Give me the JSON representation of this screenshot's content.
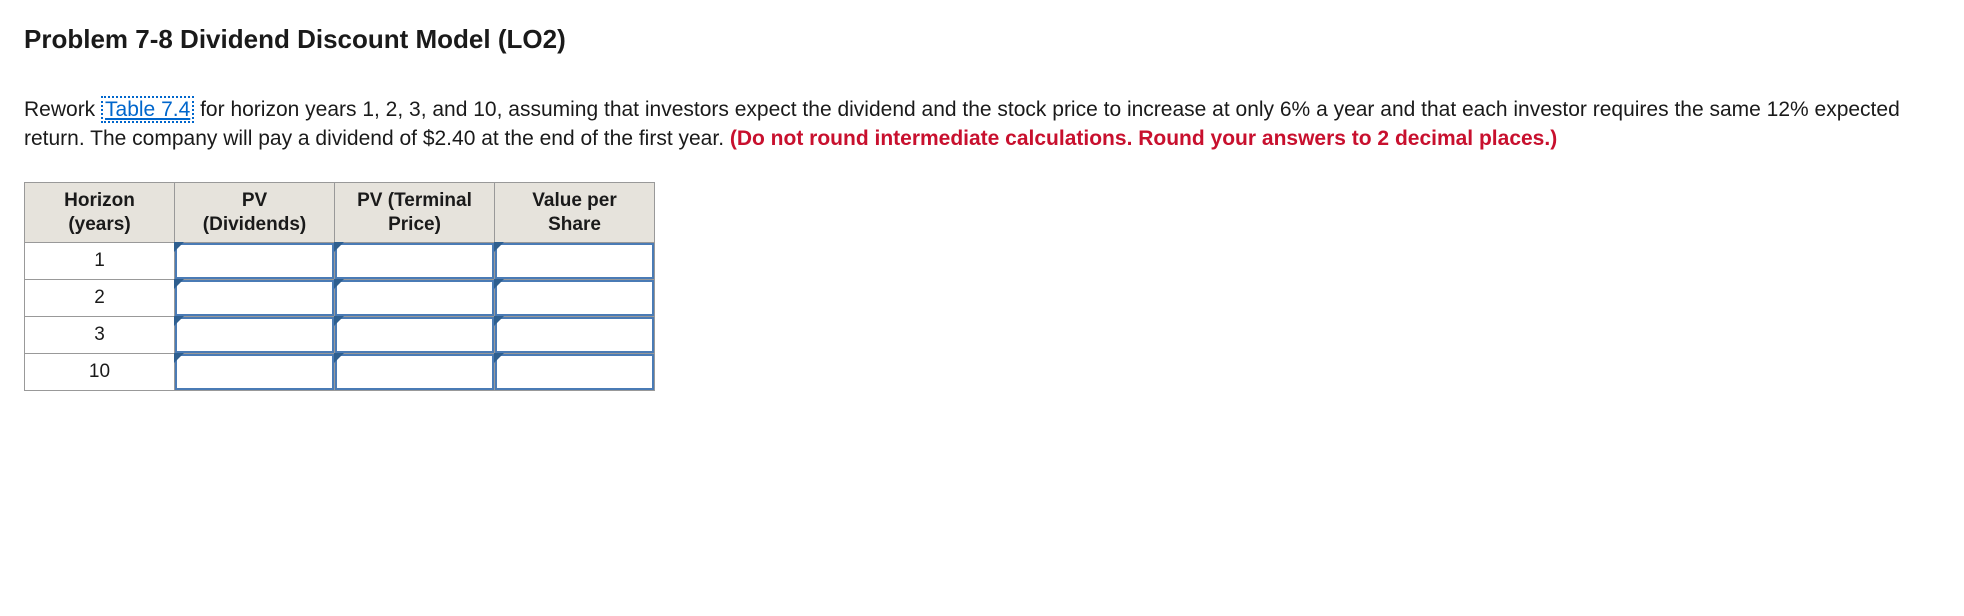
{
  "heading": "Problem 7-8 Dividend Discount Model (LO2)",
  "paragraph": {
    "part1": "Rework ",
    "link_text": "Table 7.4",
    "part2": " for horizon years 1, 2, 3, and 10, assuming that investors expect the dividend and the stock price to increase at only 6% a year and that each investor requires the same 12% expected return. The company will pay a dividend of $2.40 at the end of the first year. ",
    "instruction": "(Do not round intermediate calculations. Round your answers to 2 decimal places.)"
  },
  "table": {
    "columns": [
      {
        "line1": "Horizon",
        "line2": "(years)"
      },
      {
        "line1": "PV",
        "line2": "(Dividends)"
      },
      {
        "line1": "PV (Terminal",
        "line2": "Price)"
      },
      {
        "line1": "Value per",
        "line2": "Share"
      }
    ],
    "rows": [
      {
        "horizon": "1",
        "pv_div": "",
        "pv_term": "",
        "vps": ""
      },
      {
        "horizon": "2",
        "pv_div": "",
        "pv_term": "",
        "vps": ""
      },
      {
        "horizon": "3",
        "pv_div": "",
        "pv_term": "",
        "vps": ""
      },
      {
        "horizon": "10",
        "pv_div": "",
        "pv_term": "",
        "vps": ""
      }
    ],
    "colors": {
      "header_bg": "#e6e3dc",
      "input_border": "#4a7bb5",
      "corner_marker": "#2f5f8f",
      "instruction_text": "#c8102e",
      "link_text": "#0066cc"
    }
  }
}
